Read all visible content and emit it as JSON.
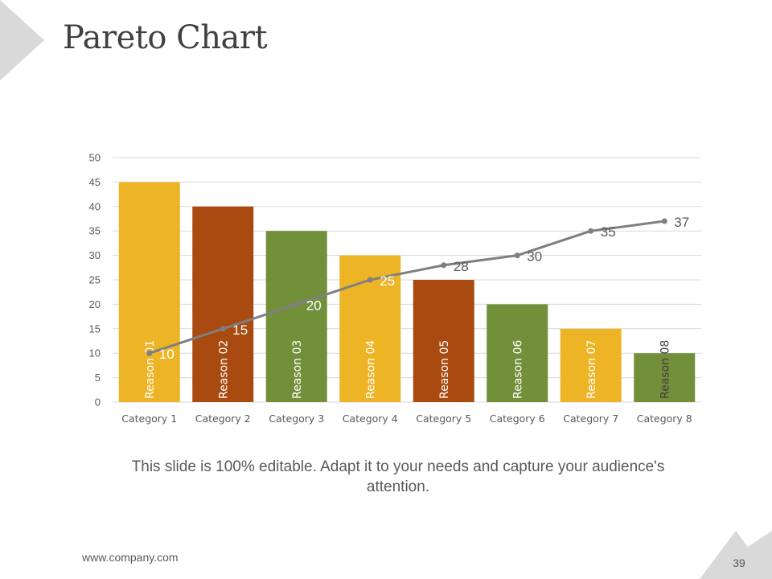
{
  "slide": {
    "title": "Pareto Chart",
    "caption": "This slide is 100% editable. Adapt it to your needs and capture your audience's attention.",
    "footer_url": "www.company.com",
    "page_number": "39"
  },
  "colors": {
    "title": "#404040",
    "decoration": "#d9d9d9",
    "gridline": "#d9d9d9",
    "line": "#7f7f7f",
    "text": "#595959"
  },
  "chart_data": {
    "type": "bar",
    "title": "",
    "xlabel": "",
    "ylabel": "",
    "categories": [
      "Category 1",
      "Category 2",
      "Category 3",
      "Category 4",
      "Category 5",
      "Category 6",
      "Category 7",
      "Category 8"
    ],
    "bar_labels": [
      "Reason 01",
      "Reason 02",
      "Reason 03",
      "Reason 04",
      "Reason 05",
      "Reason 06",
      "Reason 07",
      "Reason 08"
    ],
    "bar_colors": [
      "#edb526",
      "#a94b10",
      "#728f3a",
      "#edb526",
      "#a94b10",
      "#728f3a",
      "#edb526",
      "#728f3a"
    ],
    "series": [
      {
        "type": "bar",
        "values": [
          45,
          40,
          35,
          30,
          25,
          20,
          15,
          10
        ]
      },
      {
        "type": "line",
        "color": "#7f7f7f",
        "values": [
          10,
          15,
          20,
          25,
          28,
          30,
          35,
          37
        ]
      }
    ],
    "ylim": [
      0,
      50
    ],
    "yticks": [
      0,
      5,
      10,
      15,
      20,
      25,
      30,
      35,
      40,
      45,
      50
    ],
    "grid": true,
    "legend": "none"
  }
}
